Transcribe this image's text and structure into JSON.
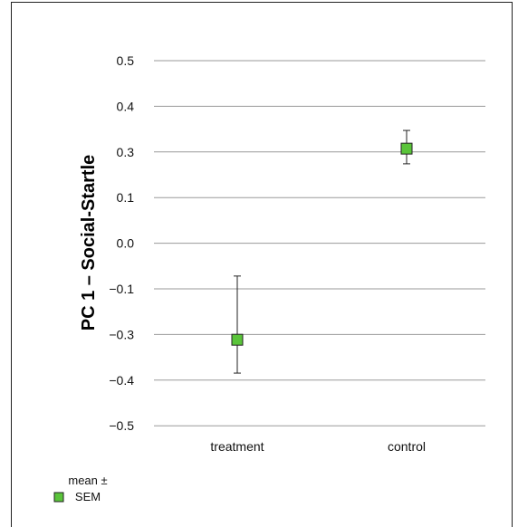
{
  "chart_data": {
    "type": "scatter",
    "ylabel": "PC 1 – Social-Startle",
    "xlabel": "",
    "categories": [
      "treatment",
      "control"
    ],
    "y_ticks": [
      "0.5",
      "0.4",
      "0.3",
      "0.1",
      "0.0",
      "−0.1",
      "−0.3",
      "−0.4",
      "−0.5"
    ],
    "points": [
      {
        "category": "treatment",
        "mean": -0.32,
        "sem_low": -0.43,
        "sem_high": -0.11
      },
      {
        "category": "control",
        "mean": 0.31,
        "sem_low": 0.26,
        "sem_high": 0.37
      }
    ],
    "marker_color": "#5ac43a",
    "grid": true,
    "legend": {
      "line1": "mean ±",
      "line2": "SEM",
      "placement": "bottom-left"
    }
  }
}
